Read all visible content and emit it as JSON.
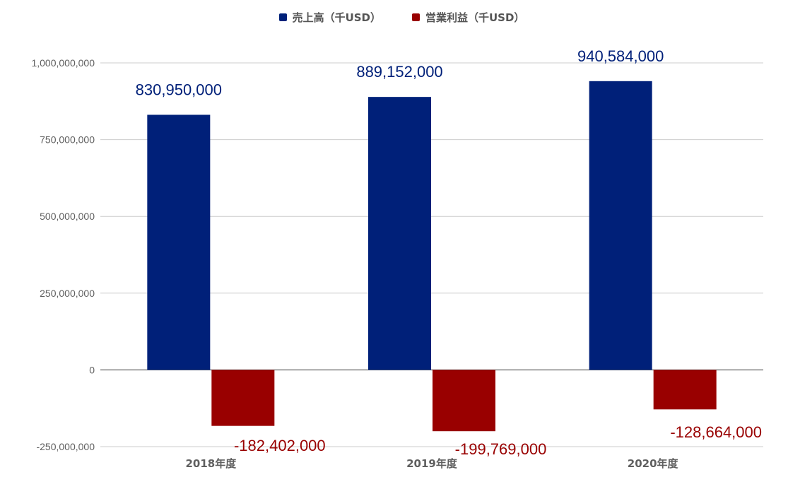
{
  "chart_data": {
    "type": "bar",
    "categories": [
      "2018年度",
      "2019年度",
      "2020年度"
    ],
    "series": [
      {
        "name": "売上高（千USD）",
        "color": "#002079",
        "values": [
          830950000,
          889152000,
          940584000
        ],
        "data_labels": [
          "830,950,000",
          "889,152,000",
          "940,584,000"
        ]
      },
      {
        "name": "営業利益（千USD）",
        "color": "#990000",
        "values": [
          -182402000,
          -199769000,
          -128664000
        ],
        "data_labels": [
          "-182,402,000",
          "-199,769,000",
          "-128,664,000"
        ]
      }
    ],
    "y_ticks": [
      -250000000,
      0,
      250000000,
      500000000,
      750000000,
      1000000000
    ],
    "y_tick_labels": [
      "-250,000,000",
      "0",
      "250,000,000",
      "500,000,000",
      "750,000,000",
      "1,000,000,000"
    ],
    "ylim": [
      -250000000,
      1000000000
    ],
    "grid": true,
    "legend_position": "top-center",
    "title": "",
    "xlabel": "",
    "ylabel": ""
  }
}
